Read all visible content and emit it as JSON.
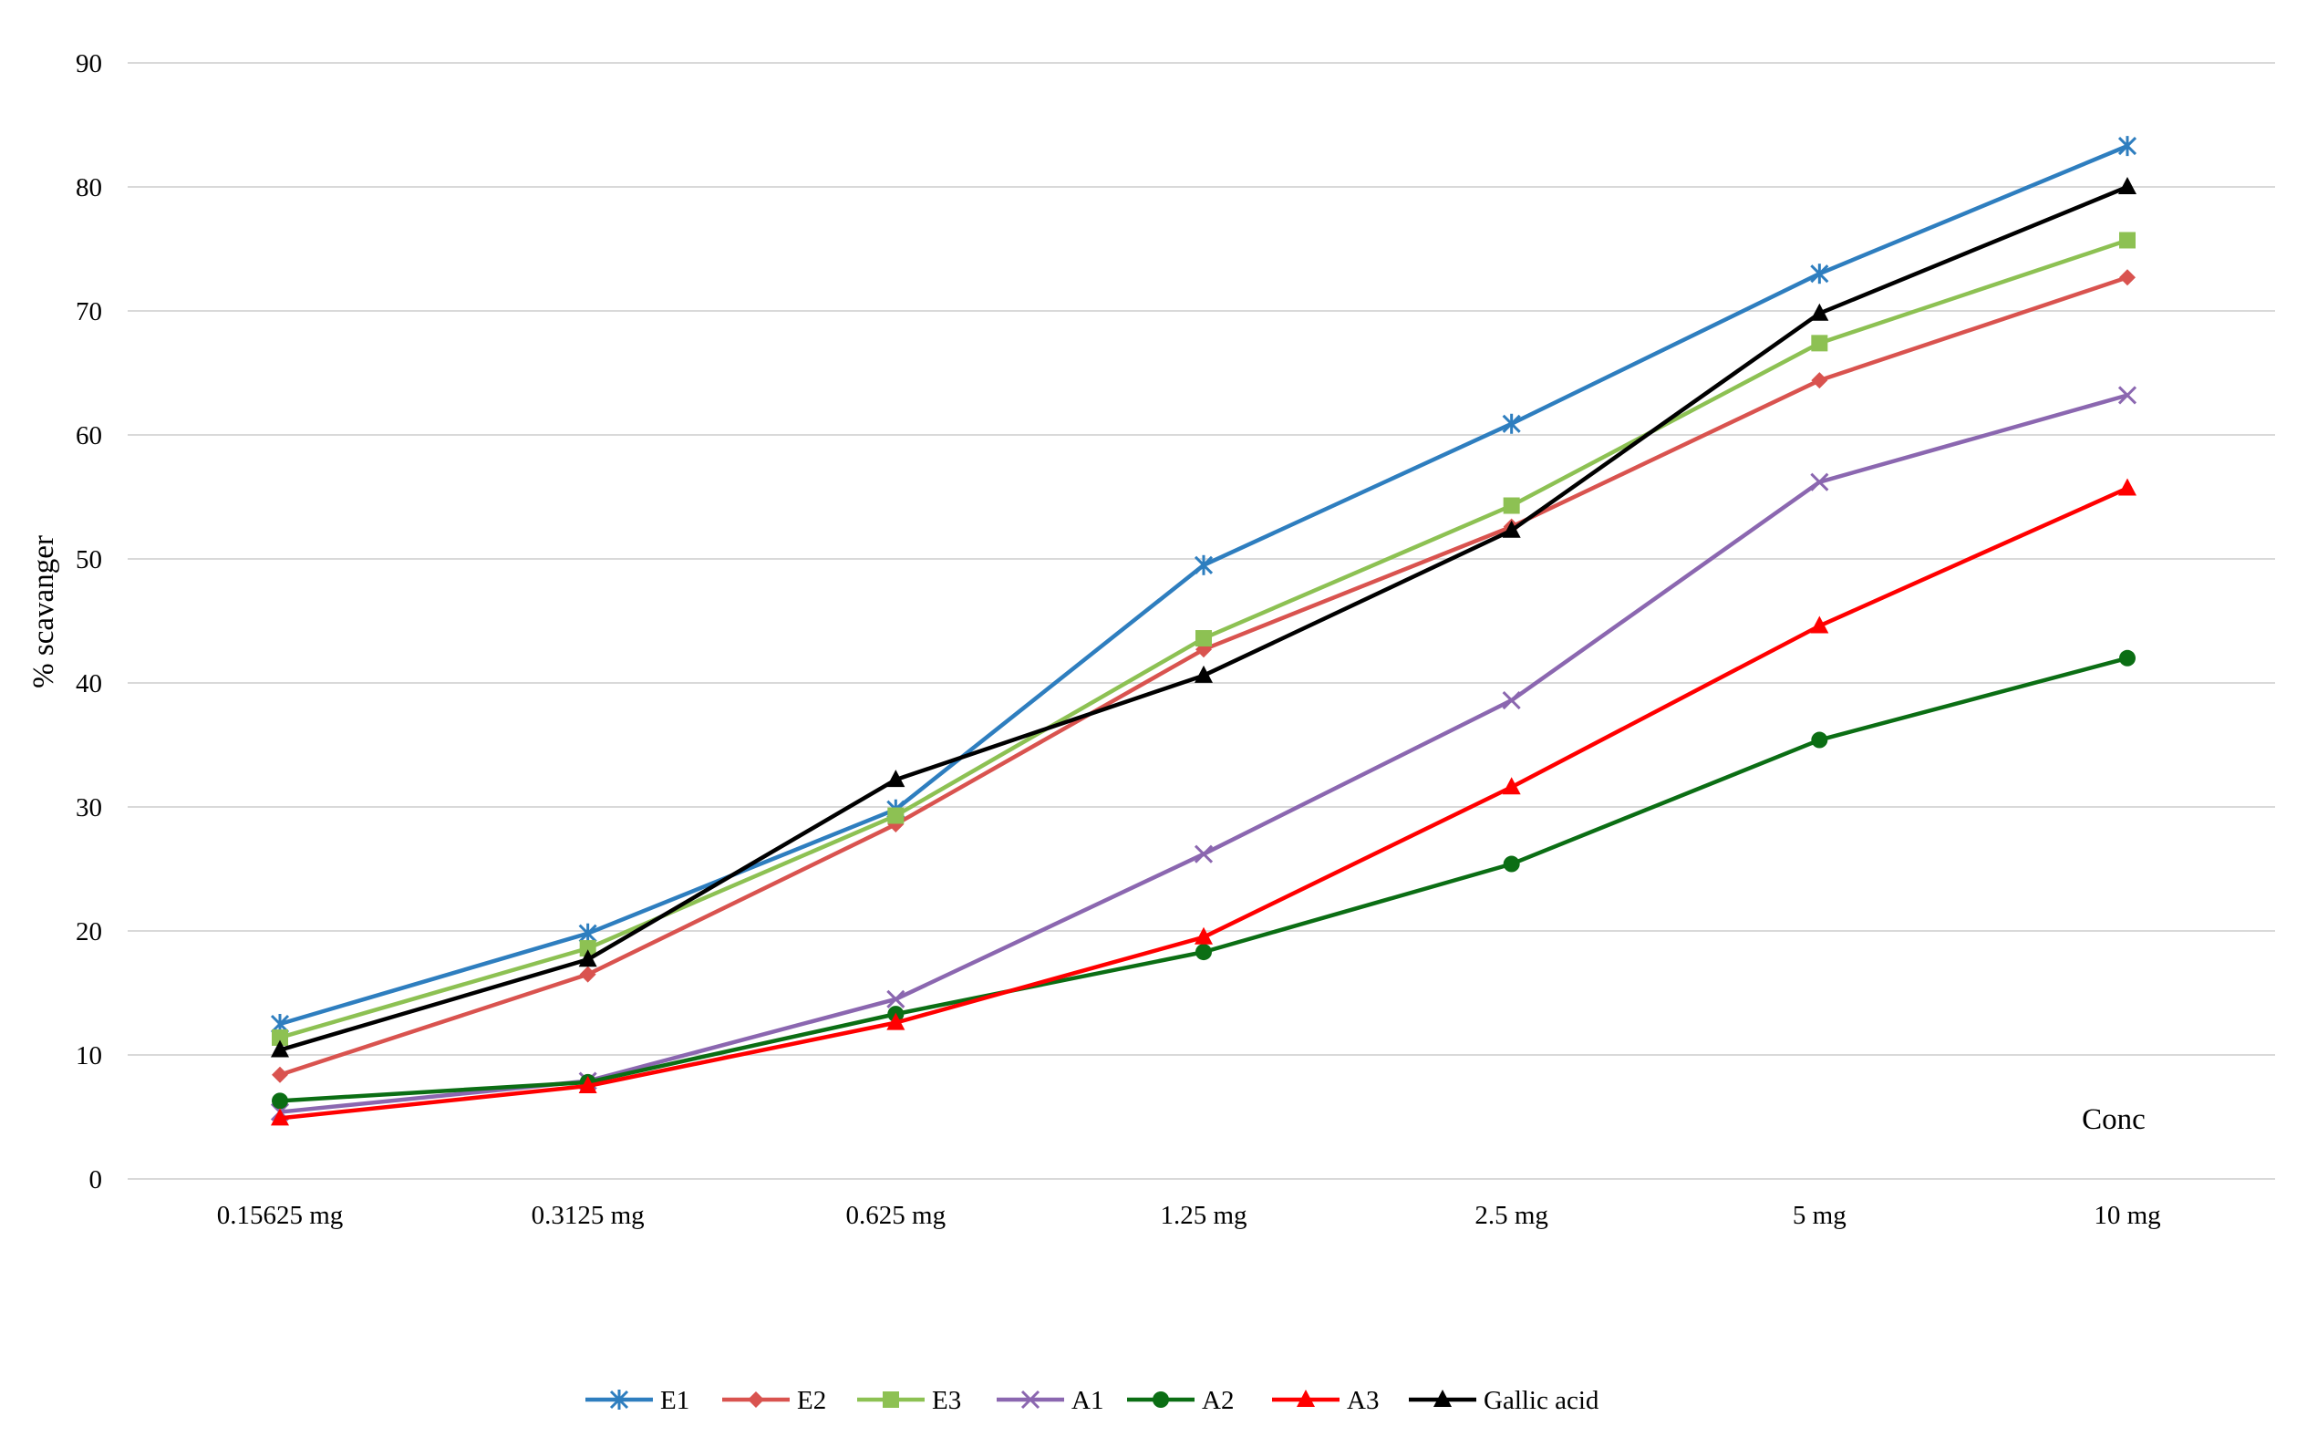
{
  "chart_data": {
    "type": "line",
    "title": "",
    "xlabel": "Conc",
    "ylabel": "% scavanger",
    "ylim": [
      0,
      90
    ],
    "y_ticks": [
      "0",
      "10",
      "20",
      "30",
      "40",
      "50",
      "60",
      "70",
      "80",
      "90"
    ],
    "grid": true,
    "legend_position": "bottom",
    "categories": [
      "0.15625 mg",
      "0.3125 mg",
      "0.625 mg",
      "1.25 mg",
      "2.5 mg",
      "5 mg",
      "10 mg"
    ],
    "series": [
      {
        "name": "E1",
        "color": "#2e7ebf",
        "marker": "asterisk",
        "values": [
          12.5,
          19.8,
          29.8,
          49.5,
          60.9,
          73.0,
          83.3
        ]
      },
      {
        "name": "E2",
        "color": "#d9534f",
        "marker": "diamond",
        "values": [
          8.4,
          16.5,
          28.6,
          42.7,
          52.6,
          64.4,
          72.7
        ]
      },
      {
        "name": "E3",
        "color": "#8dc153",
        "marker": "square",
        "values": [
          11.4,
          18.6,
          29.3,
          43.6,
          54.3,
          67.4,
          75.7
        ]
      },
      {
        "name": "A1",
        "color": "#8b67b0",
        "marker": "x",
        "values": [
          5.4,
          7.9,
          14.5,
          26.2,
          38.6,
          56.2,
          63.2
        ]
      },
      {
        "name": "A2",
        "color": "#0b6e14",
        "marker": "circle",
        "values": [
          6.3,
          7.8,
          13.3,
          18.3,
          25.4,
          35.4,
          42.0
        ]
      },
      {
        "name": "A3",
        "color": "#ff0000",
        "marker": "triangle",
        "values": [
          4.9,
          7.5,
          12.6,
          19.5,
          31.6,
          44.6,
          55.7
        ]
      },
      {
        "name": "Gallic acid",
        "color": "#000000",
        "marker": "triangle",
        "values": [
          10.4,
          17.7,
          32.2,
          40.6,
          52.3,
          69.8,
          80.0
        ]
      }
    ]
  }
}
